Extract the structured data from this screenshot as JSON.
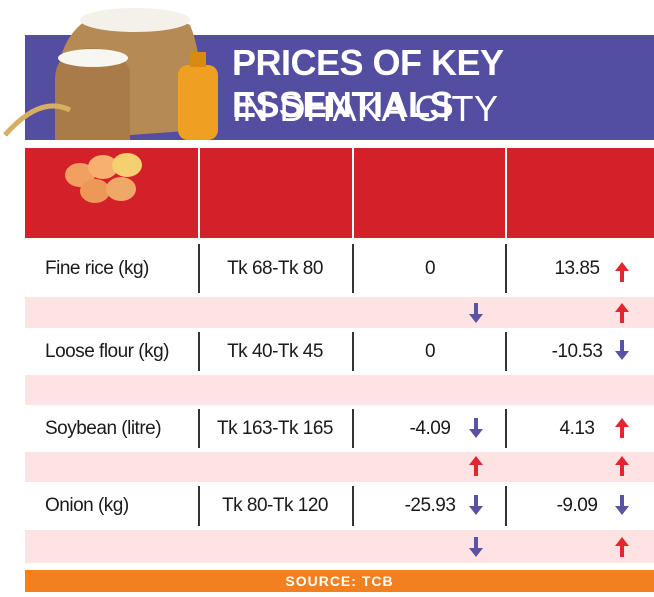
{
  "header": {
    "title_line1": "PRICES OF KEY ESSENTIALS",
    "title_line2": "IN DHAKA CITY"
  },
  "table": {
    "rows": [
      [
        "Fine rice (kg)",
        "Tk 68-Tk 80",
        "0",
        "13.85"
      ],
      [
        "Loose flour (kg)",
        "Tk 40-Tk 45",
        "0",
        "-10.53"
      ],
      [
        "Soybean (litre)",
        "Tk 163-Tk 165",
        "-4.09",
        "4.13"
      ],
      [
        "Onion (kg)",
        "Tk 80-Tk 120",
        "-25.93",
        "-9.09"
      ]
    ]
  },
  "footer": {
    "source": "SOURCE: TCB"
  }
}
